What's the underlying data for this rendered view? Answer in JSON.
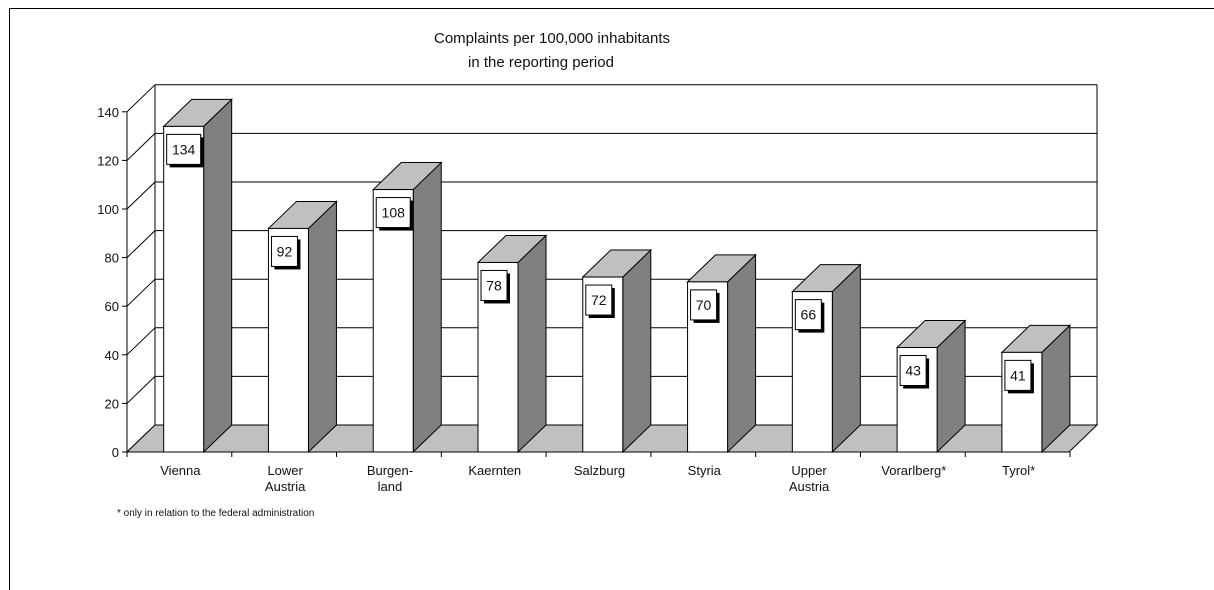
{
  "chart_data": {
    "type": "bar",
    "title": "Complaints per 100,000 inhabitants",
    "subtitle": "in the reporting period",
    "categories": [
      [
        "Vienna"
      ],
      [
        "Lower",
        "Austria"
      ],
      [
        "Burgen-",
        "land"
      ],
      [
        "Kaernten"
      ],
      [
        "Salzburg"
      ],
      [
        "Styria"
      ],
      [
        "Upper",
        "Austria"
      ],
      [
        "Vorarlberg*"
      ],
      [
        "Tyrol*"
      ]
    ],
    "values": [
      134,
      92,
      108,
      78,
      72,
      70,
      66,
      43,
      41
    ],
    "data_labels": [
      "134",
      "92",
      "108",
      "78",
      "72",
      "70",
      "66",
      "43",
      "41"
    ],
    "ylim": [
      0,
      140
    ],
    "yticks": [
      "0",
      "20",
      "40",
      "60",
      "80",
      "100",
      "120",
      "140"
    ],
    "grid": true,
    "style": "3d",
    "colors": {
      "bar_front": "#ffffff",
      "bar_side": "#808080",
      "bar_top": "#c0c0c0",
      "floor": "#c0c0c0",
      "gridline": "#000000"
    }
  },
  "footnote": "* only in relation to the federal administration"
}
